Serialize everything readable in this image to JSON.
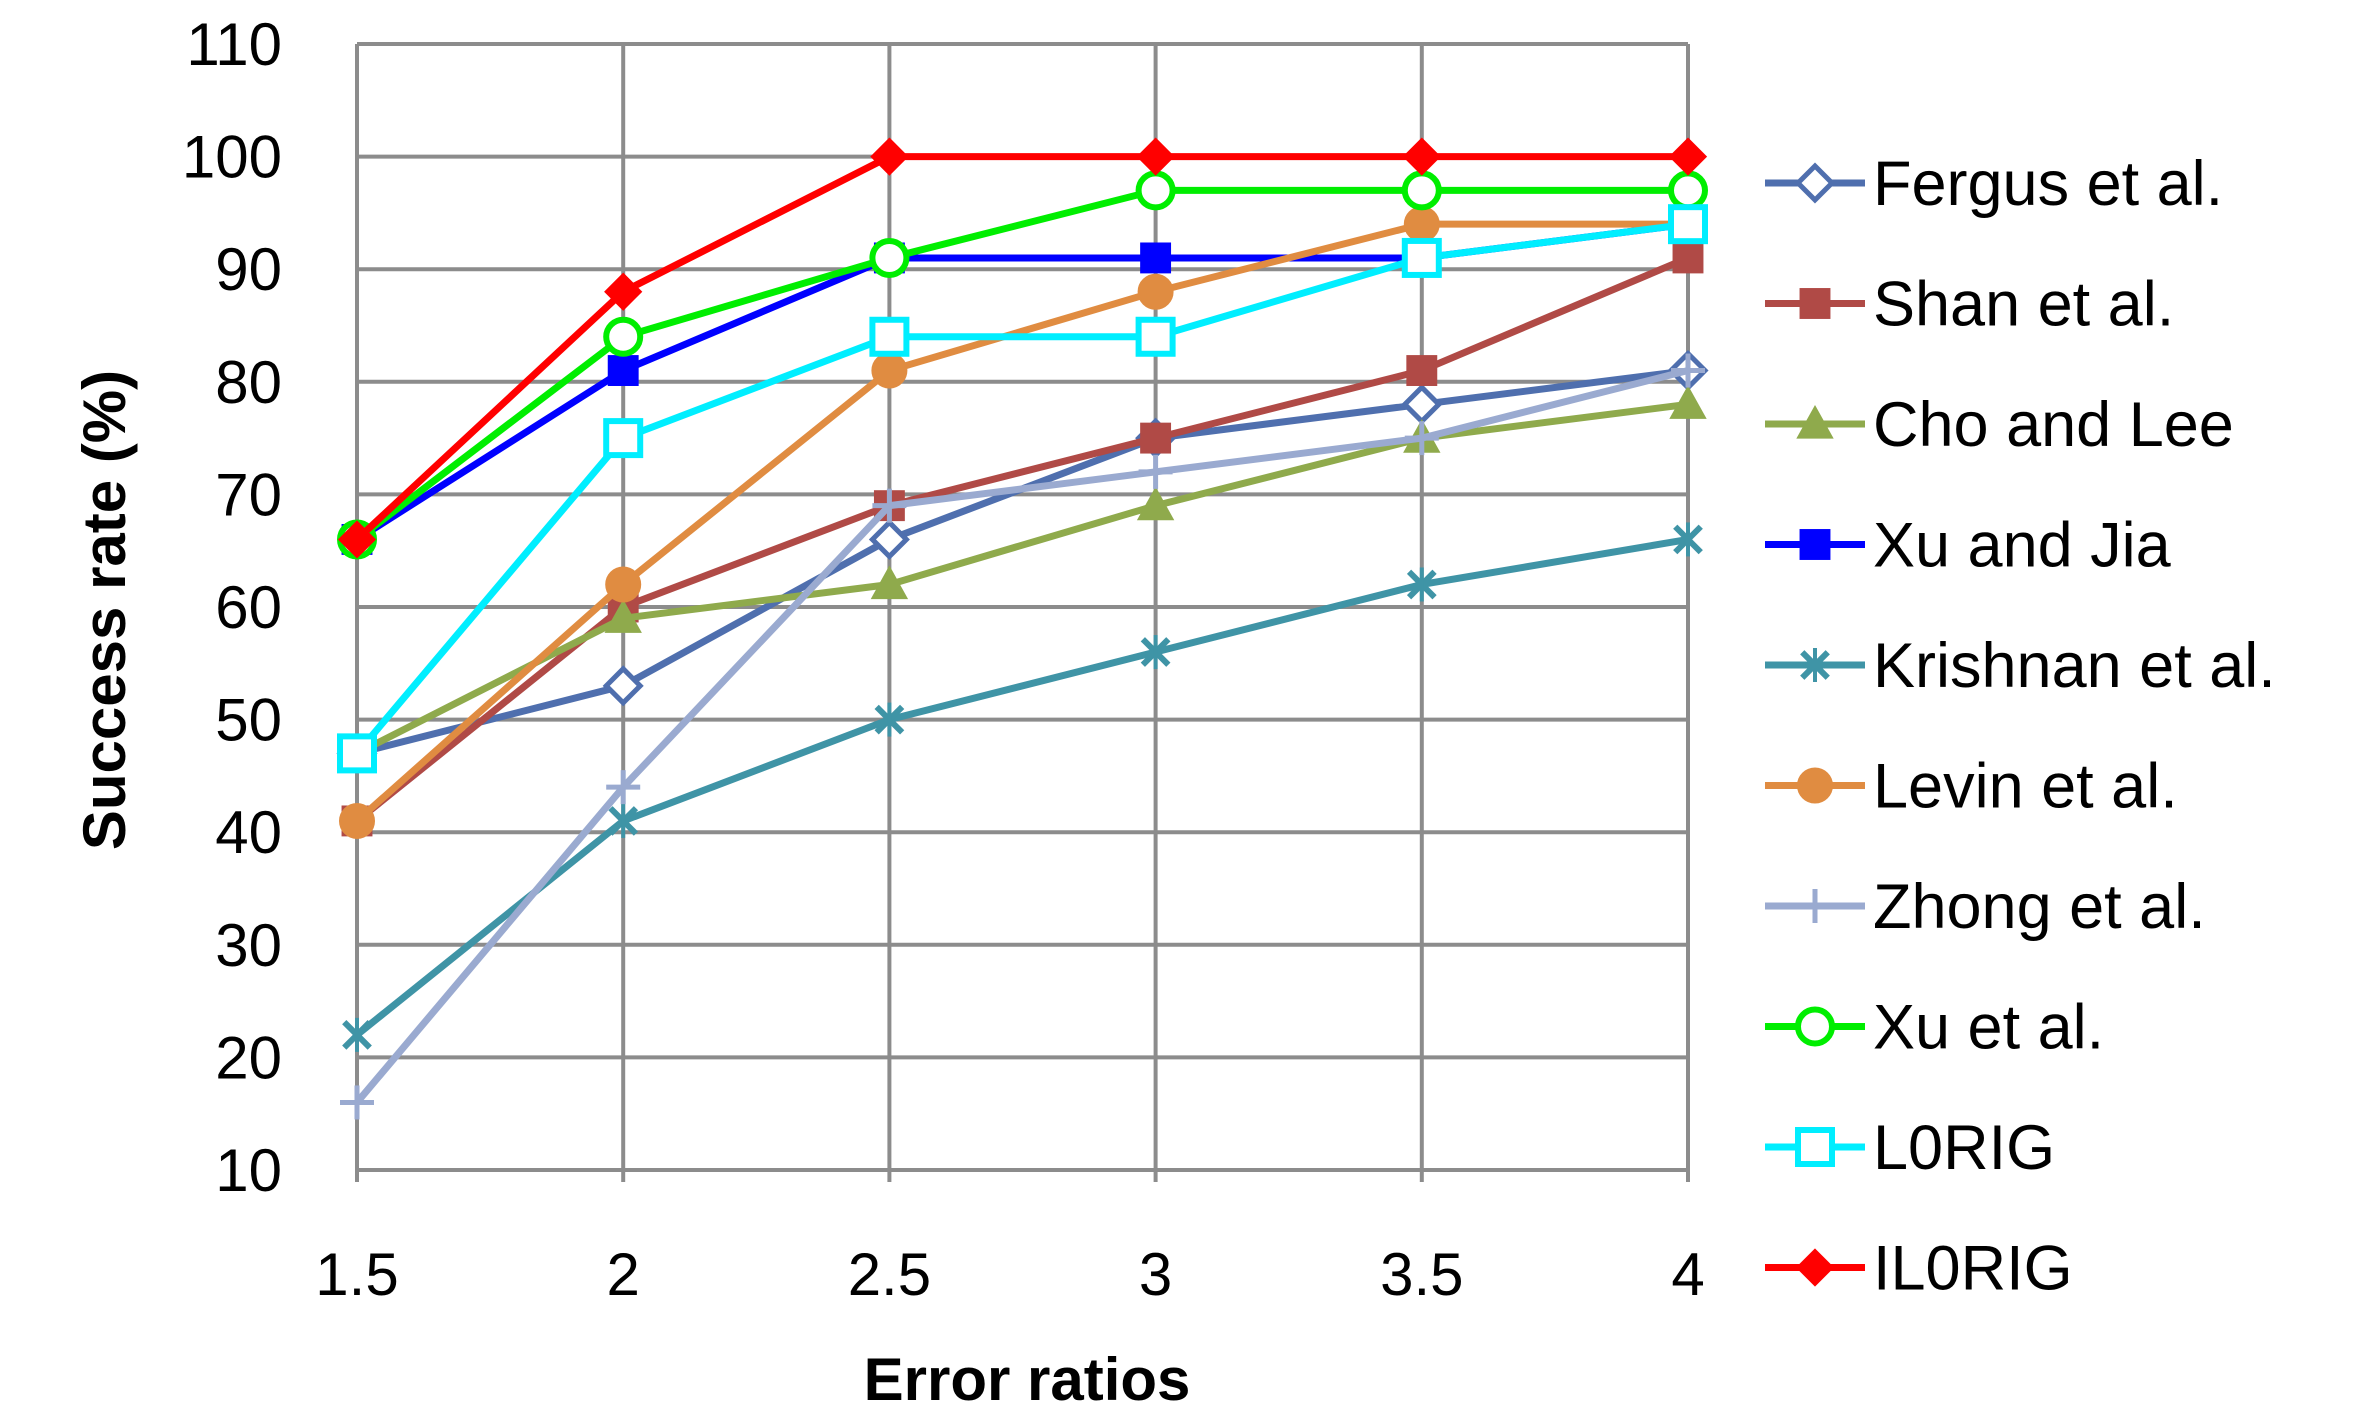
{
  "chart_data": {
    "type": "line",
    "title": "",
    "xlabel": "Error ratios",
    "ylabel": "Success rate (%)",
    "x": [
      1.5,
      2,
      2.5,
      3,
      3.5,
      4
    ],
    "x_tick_labels": [
      "1.5",
      "2",
      "2.5",
      "3",
      "3.5",
      "4"
    ],
    "ylim": [
      10,
      110
    ],
    "y_ticks": [
      10,
      20,
      30,
      40,
      50,
      60,
      70,
      80,
      90,
      100,
      110
    ],
    "grid": "horizontal",
    "legend_position": "right",
    "series": [
      {
        "name": "Fergus et al.",
        "color": "#4f6fae",
        "marker": "diamond-open",
        "values": [
          47,
          53,
          66,
          75,
          78,
          81
        ]
      },
      {
        "name": "Shan et al.",
        "color": "#b04a46",
        "marker": "square",
        "values": [
          41,
          60,
          69,
          75,
          81,
          91
        ]
      },
      {
        "name": "Cho and Lee",
        "color": "#8faa4c",
        "marker": "triangle",
        "values": [
          47,
          59,
          62,
          69,
          75,
          78
        ]
      },
      {
        "name": "Xu and Jia",
        "color": "#0000ff",
        "marker": "square",
        "values": [
          66,
          81,
          91,
          91,
          91,
          94
        ]
      },
      {
        "name": "Krishnan et al.",
        "color": "#3f94a6",
        "marker": "star",
        "values": [
          22,
          41,
          50,
          56,
          62,
          66
        ]
      },
      {
        "name": "Levin et al.",
        "color": "#e08c41",
        "marker": "circle",
        "values": [
          41,
          62,
          81,
          88,
          94,
          94
        ]
      },
      {
        "name": "Zhong et al.",
        "color": "#9aaad0",
        "marker": "plus",
        "values": [
          16,
          44,
          69,
          72,
          75,
          81
        ]
      },
      {
        "name": "Xu et al.",
        "color": "#00ee00",
        "marker": "circle-open",
        "values": [
          66,
          84,
          91,
          97,
          97,
          97
        ]
      },
      {
        "name": "L0RIG",
        "color": "#00eeff",
        "marker": "square-open",
        "values": [
          47,
          75,
          84,
          84,
          91,
          94
        ]
      },
      {
        "name": "IL0RIG",
        "color": "#ff0000",
        "marker": "diamond",
        "values": [
          66,
          88,
          100,
          100,
          100,
          100
        ]
      }
    ]
  }
}
